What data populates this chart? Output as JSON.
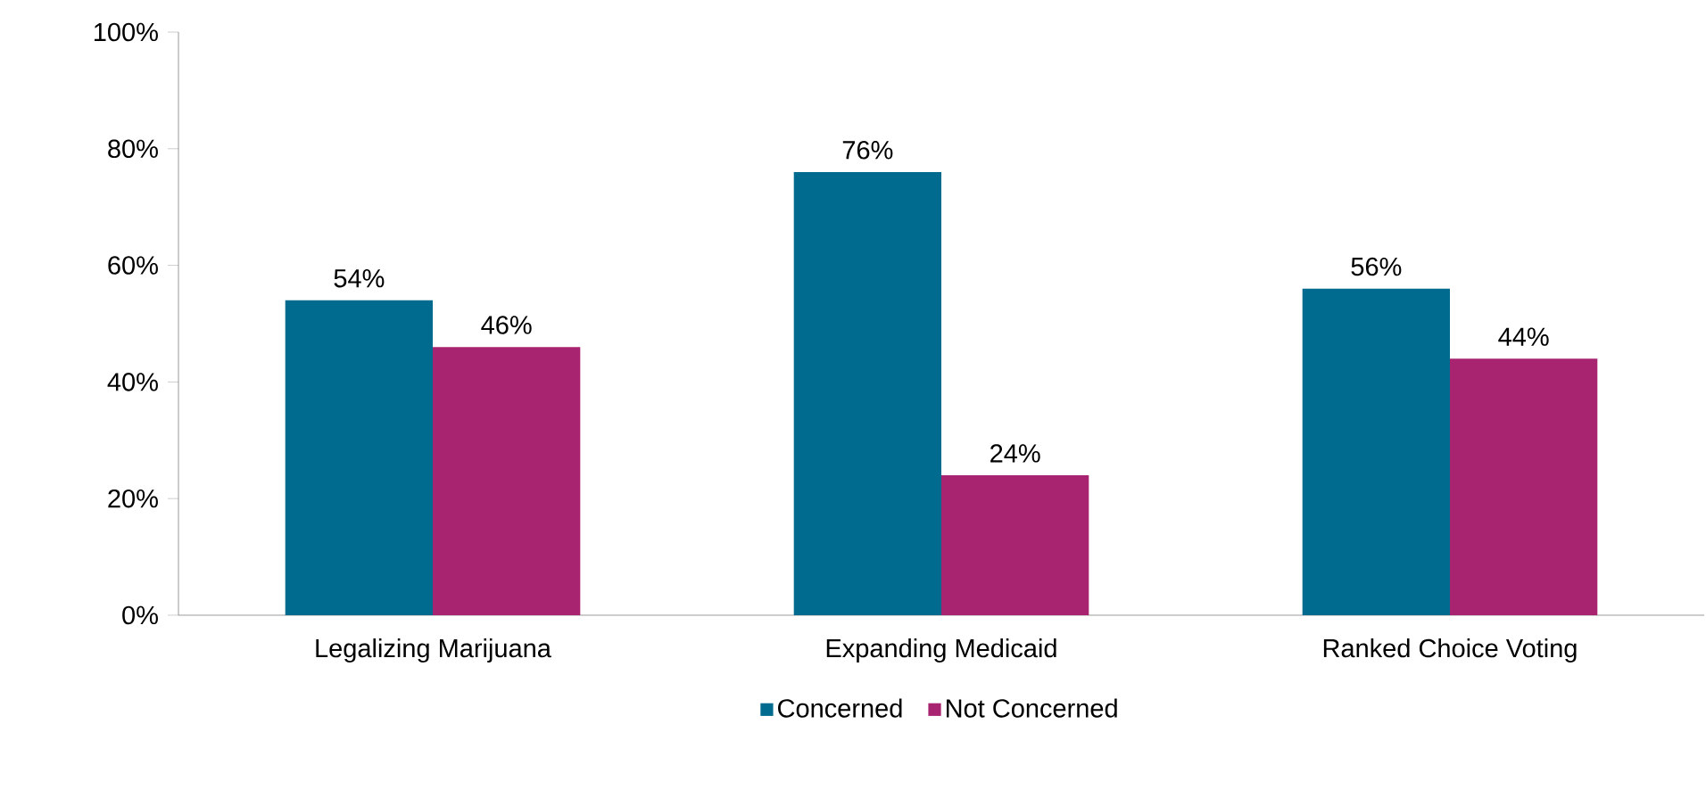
{
  "chart_data": {
    "type": "bar",
    "categories": [
      "Legalizing Marijuana",
      "Expanding Medicaid",
      "Ranked Choice Voting"
    ],
    "series": [
      {
        "name": "Concerned",
        "color": "#006b8f",
        "values": [
          54,
          76,
          56
        ],
        "value_labels": [
          "54%",
          "76%",
          "56%"
        ]
      },
      {
        "name": "Not Concerned",
        "color": "#a82370",
        "values": [
          46,
          24,
          44
        ],
        "value_labels": [
          "46%",
          "24%",
          "44%"
        ]
      }
    ],
    "ylim": [
      0,
      100
    ],
    "yticks": [
      {
        "value": 0,
        "label": "0%"
      },
      {
        "value": 20,
        "label": "20%"
      },
      {
        "value": 40,
        "label": "40%"
      },
      {
        "value": 60,
        "label": "60%"
      },
      {
        "value": 80,
        "label": "80%"
      },
      {
        "value": 100,
        "label": "100%"
      }
    ],
    "grid": false,
    "legend": "bottom"
  }
}
